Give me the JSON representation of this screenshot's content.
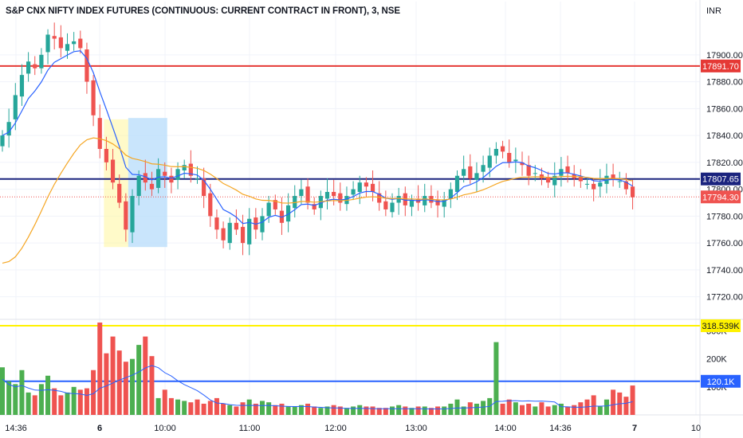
{
  "header": {
    "title": "S&P CNX NIFTY INDEX FUTURES (CONTINUOUS: CURRENT CONTRACT IN FRONT), 3, NSE",
    "currency": "INR"
  },
  "colors": {
    "up": "#26a69a",
    "up_volume": "#4caf50",
    "down": "#ef5350",
    "ma_fast": "#2962ff",
    "ma_slow": "#f5a623",
    "resistance_line": "#e53935",
    "support_line": "#1a237e",
    "volume_level_line": "#fff200",
    "volume_avg_line": "#2962ff",
    "grid": "#f0f3fa",
    "zone_yellow": "#fff59d",
    "zone_blue": "#bbdefb"
  },
  "chart_data": [
    {
      "type": "candlestick",
      "panel": "price",
      "y_axis_ticks": [
        "17720.00",
        "17740.00",
        "17760.00",
        "17780.00",
        "17800.00",
        "17820.00",
        "17840.00",
        "17860.00",
        "17880.00",
        "17900.00"
      ],
      "ylim": [
        17705,
        17923
      ],
      "x_axis_ticks": [
        "14:36",
        "6",
        "10:00",
        "11:00",
        "12:00",
        "13:00",
        "14:00",
        "14:36",
        "7",
        "10"
      ],
      "horizontal_levels": [
        {
          "value": 17891.7,
          "label": "17891.70",
          "color": "#e53935"
        },
        {
          "value": 17807.65,
          "label": "17807.65",
          "color": "#1a237e"
        },
        {
          "value": 17794.3,
          "label": "17794.30",
          "color": "#ef5350",
          "style": "dotted"
        }
      ],
      "close_series": [
        17840,
        17850,
        17870,
        17885,
        17895,
        17890,
        17900,
        17915,
        17912,
        17905,
        17908,
        17910,
        17905,
        17880,
        17855,
        17830,
        17820,
        17805,
        17790,
        17770,
        17795,
        17810,
        17805,
        17800,
        17815,
        17810,
        17805,
        17815,
        17818,
        17810,
        17808,
        17795,
        17780,
        17770,
        17762,
        17775,
        17770,
        17760,
        17778,
        17770,
        17780,
        17790,
        17785,
        17775,
        17788,
        17795,
        17800,
        17790,
        17785,
        17795,
        17798,
        17795,
        17790,
        17795,
        17800,
        17805,
        17802,
        17798,
        17790,
        17785,
        17790,
        17795,
        17788,
        17792,
        17790,
        17795,
        17790,
        17788,
        17792,
        17800,
        17810,
        17815,
        17808,
        17812,
        17818,
        17825,
        17830,
        17828,
        17820,
        17822,
        17818,
        17810,
        17812,
        17808,
        17805,
        17810,
        17815,
        17812,
        17808,
        17806,
        17804,
        17800,
        17805,
        17810,
        17808,
        17806,
        17800,
        17794
      ]
    },
    {
      "type": "bar",
      "panel": "volume",
      "y_axis_ticks": [
        "100K",
        "200K",
        "300K"
      ],
      "ylim": [
        0,
        330
      ],
      "horizontal_levels": [
        {
          "value": 318.539,
          "label": "318.539K",
          "color": "#fff200"
        },
        {
          "value": 120.1,
          "label": "120.1K",
          "color": "#2962ff"
        }
      ],
      "values": [
        170,
        120,
        110,
        160,
        80,
        70,
        110,
        140,
        95,
        70,
        80,
        100,
        90,
        95,
        160,
        330,
        220,
        280,
        230,
        190,
        200,
        250,
        280,
        210,
        60,
        90,
        60,
        55,
        50,
        45,
        55,
        40,
        50,
        60,
        40,
        35,
        30,
        45,
        55,
        40,
        50,
        45,
        35,
        40,
        30,
        30,
        35,
        40,
        30,
        25,
        30,
        35,
        30,
        25,
        30,
        35,
        30,
        30,
        25,
        25,
        30,
        35,
        30,
        25,
        30,
        30,
        25,
        30,
        30,
        40,
        55,
        30,
        45,
        40,
        50,
        60,
        260,
        40,
        55,
        45,
        35,
        40,
        30,
        45,
        30,
        35,
        40,
        30,
        35,
        45,
        55,
        70,
        30,
        55,
        90,
        80,
        65,
        105
      ]
    }
  ]
}
